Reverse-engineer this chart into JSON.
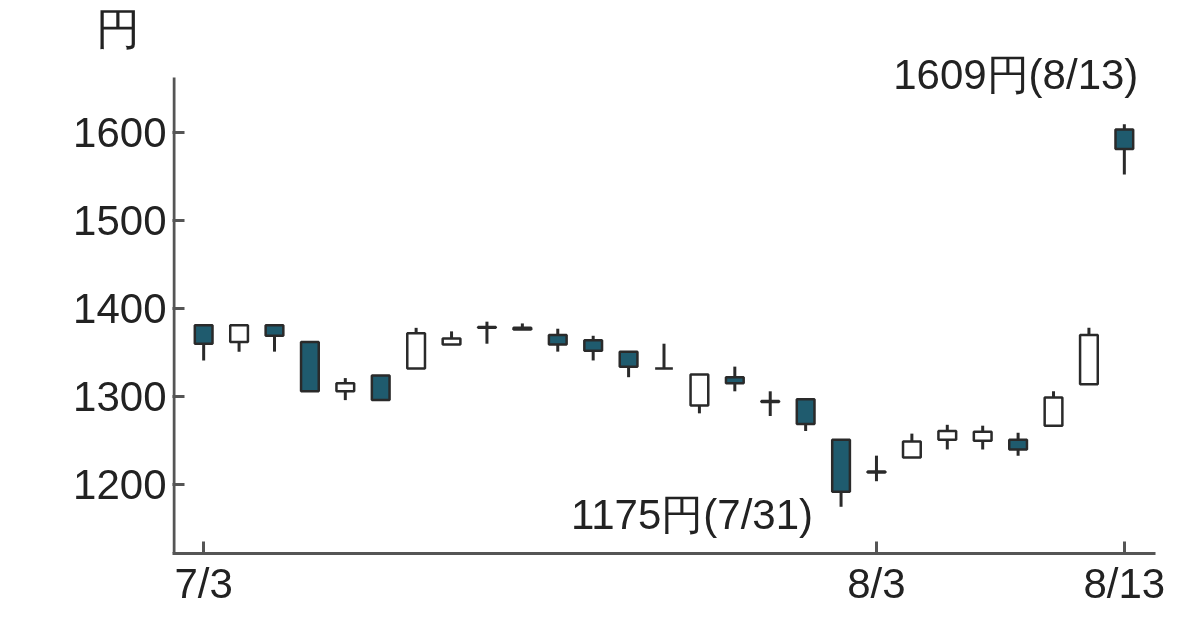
{
  "chart_data": {
    "type": "candlestick",
    "ylabel": "円",
    "categories": [
      "7/3",
      null,
      null,
      null,
      null,
      null,
      null,
      null,
      null,
      null,
      null,
      null,
      null,
      null,
      null,
      null,
      null,
      null,
      null,
      "8/3",
      null,
      null,
      null,
      null,
      null,
      null,
      "8/13"
    ],
    "ohlc": [
      [
        1381,
        1381,
        1341,
        1360
      ],
      [
        1362,
        1381,
        1351,
        1381
      ],
      [
        1381,
        1381,
        1351,
        1369
      ],
      [
        1362,
        1362,
        1306,
        1306
      ],
      [
        1306,
        1321,
        1296,
        1315
      ],
      [
        1324,
        1324,
        1296,
        1296
      ],
      [
        1332,
        1378,
        1332,
        1372
      ],
      [
        1359,
        1374,
        1359,
        1366
      ],
      [
        1379,
        1385,
        1360,
        1378
      ],
      [
        1376,
        1383,
        1376,
        1378
      ],
      [
        1370,
        1377,
        1351,
        1359
      ],
      [
        1364,
        1369,
        1341,
        1352
      ],
      [
        1351,
        1351,
        1322,
        1334
      ],
      [
        1332,
        1360,
        1332,
        1332
      ],
      [
        1290,
        1325,
        1281,
        1325
      ],
      [
        1322,
        1334,
        1306,
        1315
      ],
      [
        1295,
        1306,
        1278,
        1294
      ],
      [
        1297,
        1297,
        1261,
        1269
      ],
      [
        1251,
        1251,
        1175,
        1192
      ],
      [
        1214,
        1233,
        1204,
        1215
      ],
      [
        1231,
        1258,
        1231,
        1249
      ],
      [
        1251,
        1268,
        1240,
        1261
      ],
      [
        1250,
        1267,
        1240,
        1260
      ],
      [
        1251,
        1259,
        1233,
        1240
      ],
      [
        1267,
        1306,
        1267,
        1299
      ],
      [
        1314,
        1378,
        1314,
        1370
      ],
      [
        1603,
        1609,
        1552,
        1581
      ]
    ],
    "colors": [
      "#1f5b6e",
      "#ffffff",
      "#1f5b6e",
      "#1f5b6e",
      "#ffffff",
      "#1f5b6e",
      "#ffffff",
      "#ffffff",
      "#2a2a2a",
      "#2a2a2a",
      "#1f5b6e",
      "#1f5b6e",
      "#1f5b6e",
      "#2a2a2a",
      "#ffffff",
      "#1f5b6e",
      "#2a2a2a",
      "#1f5b6e",
      "#1f5b6e",
      "#2a2a2a",
      "#ffffff",
      "#ffffff",
      "#ffffff",
      "#1f5b6e",
      "#ffffff",
      "#ffffff",
      "#1f5b6e"
    ],
    "ylim": [
      1122,
      1662
    ],
    "yticks": [
      1200,
      1300,
      1400,
      1500,
      1600
    ],
    "annotations": [
      {
        "text": "1609円(8/13)",
        "x": "8/13",
        "y": 1609
      },
      "1175円(7/31)"
    ]
  }
}
